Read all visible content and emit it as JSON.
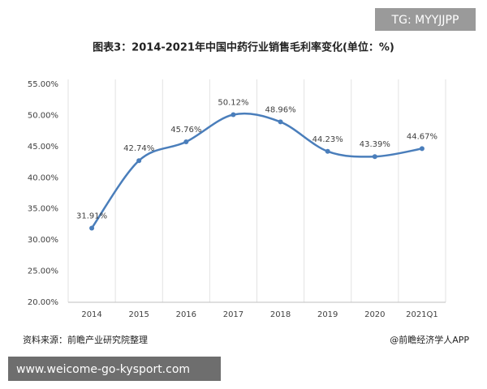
{
  "chart_data": {
    "type": "line",
    "badge": "TG: MYYJJPP",
    "title": "图表3：2014-2021年中国中药行业销售毛利率变化(单位：%)",
    "categories": [
      "2014",
      "2015",
      "2016",
      "2017",
      "2018",
      "2019",
      "2020",
      "2021Q1"
    ],
    "values": [
      31.91,
      42.74,
      45.76,
      50.12,
      48.96,
      44.23,
      43.39,
      44.67
    ],
    "value_labels": [
      "31.91%",
      "42.74%",
      "45.76%",
      "50.12%",
      "48.96%",
      "44.23%",
      "43.39%",
      "44.67%"
    ],
    "color": "#4a7ebb",
    "smooth": true,
    "ylim": [
      20,
      55
    ],
    "yticks": [
      {
        "value": 20,
        "label": "20.00%"
      },
      {
        "value": 25,
        "label": "25.00%"
      },
      {
        "value": 30,
        "label": "30.00%"
      },
      {
        "value": 35,
        "label": "35.00%"
      },
      {
        "value": 40,
        "label": "40.00%"
      },
      {
        "value": 45,
        "label": "45.00%"
      },
      {
        "value": 50,
        "label": "50.00%"
      },
      {
        "value": 55,
        "label": "55.00%"
      }
    ],
    "source": "资料来源：前瞻产业研究院整理",
    "credit": "@前瞻经济学人APP",
    "footer_url": "www.weicome-go-kysport.com"
  }
}
